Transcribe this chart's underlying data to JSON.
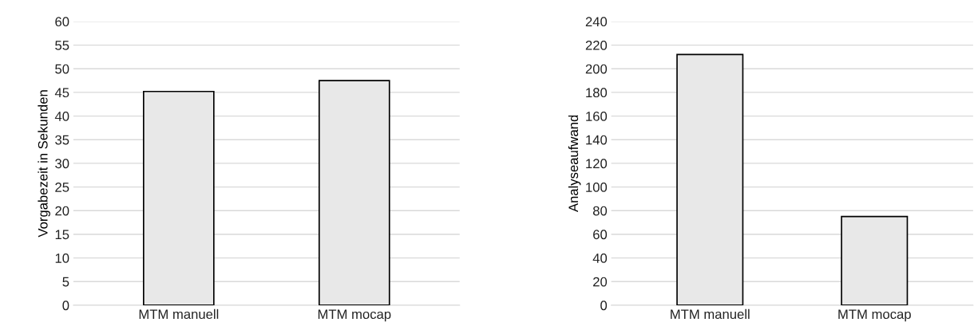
{
  "chart_data": [
    {
      "type": "bar",
      "ylabel": "Vorgabezeit in Sekunden",
      "categories": [
        "MTM manuell",
        "MTM mocap"
      ],
      "values": [
        45.2,
        47.5
      ],
      "color": "#e8e8e8",
      "ylim": [
        0,
        60
      ],
      "yticks": [
        0,
        5,
        10,
        15,
        20,
        25,
        30,
        35,
        40,
        45,
        50,
        55,
        60
      ],
      "grid": "y"
    },
    {
      "type": "bar",
      "ylabel": "Analyseaufwand",
      "categories": [
        "MTM manuell",
        "MTM mocap"
      ],
      "values": [
        212,
        75
      ],
      "color": "#e8e8e8",
      "ylim": [
        0,
        240
      ],
      "yticks": [
        0,
        20,
        40,
        60,
        80,
        100,
        120,
        140,
        160,
        180,
        200,
        220,
        240
      ],
      "grid": "y"
    }
  ]
}
